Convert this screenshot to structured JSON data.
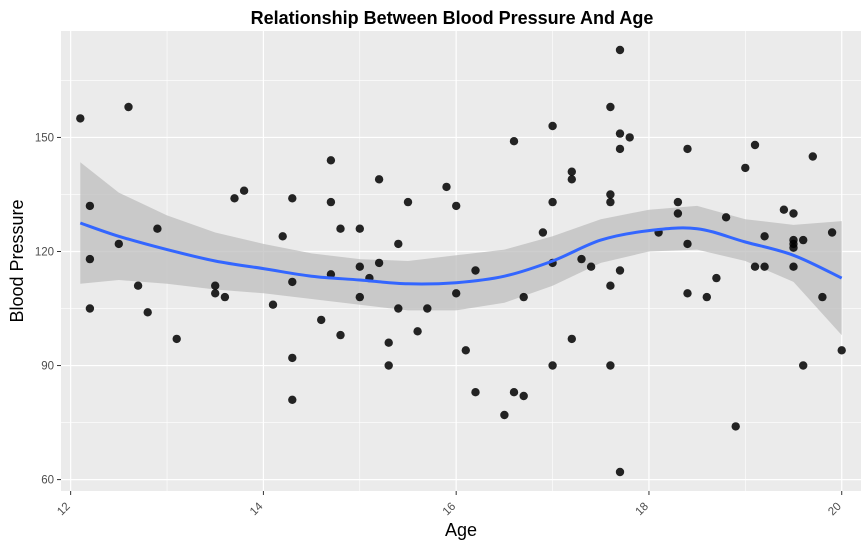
{
  "chart_data": {
    "type": "scatter",
    "title": "Relationship Between Blood Pressure And Age",
    "xlabel": "Age",
    "ylabel": "Blood Pressure",
    "xlim": [
      11.9,
      20.2
    ],
    "ylim": [
      57,
      178
    ],
    "x_ticks": [
      12,
      14,
      16,
      18,
      20
    ],
    "y_ticks": [
      60,
      90,
      120,
      150
    ],
    "grid": true,
    "legend": "none",
    "colors": {
      "panel": "#EBEBEB",
      "grid": "#FFFFFF",
      "points": "#000000",
      "smooth": "#3366FF",
      "ribbon": "#BEBEBE"
    },
    "points": [
      [
        12.1,
        155
      ],
      [
        12.2,
        132
      ],
      [
        12.2,
        118
      ],
      [
        12.2,
        105
      ],
      [
        12.5,
        122
      ],
      [
        12.6,
        158
      ],
      [
        12.7,
        111
      ],
      [
        12.8,
        104
      ],
      [
        12.9,
        126
      ],
      [
        13.1,
        97
      ],
      [
        13.5,
        111
      ],
      [
        13.5,
        109
      ],
      [
        13.6,
        108
      ],
      [
        13.7,
        134
      ],
      [
        13.8,
        136
      ],
      [
        14.1,
        106
      ],
      [
        14.2,
        124
      ],
      [
        14.3,
        134
      ],
      [
        14.3,
        112
      ],
      [
        14.3,
        92
      ],
      [
        14.3,
        81
      ],
      [
        14.6,
        102
      ],
      [
        14.7,
        144
      ],
      [
        14.7,
        133
      ],
      [
        14.7,
        114
      ],
      [
        14.8,
        126
      ],
      [
        14.8,
        98
      ],
      [
        15.0,
        126
      ],
      [
        15.0,
        116
      ],
      [
        15.0,
        108
      ],
      [
        15.1,
        113
      ],
      [
        15.2,
        139
      ],
      [
        15.2,
        117
      ],
      [
        15.3,
        96
      ],
      [
        15.3,
        90
      ],
      [
        15.4,
        122
      ],
      [
        15.4,
        105
      ],
      [
        15.5,
        133
      ],
      [
        15.6,
        99
      ],
      [
        15.7,
        105
      ],
      [
        15.9,
        137
      ],
      [
        16.0,
        132
      ],
      [
        16.0,
        109
      ],
      [
        16.1,
        94
      ],
      [
        16.2,
        115
      ],
      [
        16.2,
        83
      ],
      [
        16.5,
        77
      ],
      [
        16.6,
        149
      ],
      [
        16.6,
        83
      ],
      [
        16.7,
        108
      ],
      [
        16.7,
        82
      ],
      [
        16.9,
        125
      ],
      [
        17.0,
        153
      ],
      [
        17.0,
        133
      ],
      [
        17.0,
        117
      ],
      [
        17.0,
        90
      ],
      [
        17.2,
        141
      ],
      [
        17.2,
        139
      ],
      [
        17.2,
        97
      ],
      [
        17.3,
        118
      ],
      [
        17.4,
        116
      ],
      [
        17.6,
        158
      ],
      [
        17.6,
        135
      ],
      [
        17.6,
        133
      ],
      [
        17.6,
        111
      ],
      [
        17.6,
        90
      ],
      [
        17.7,
        173
      ],
      [
        17.7,
        151
      ],
      [
        17.7,
        147
      ],
      [
        17.7,
        115
      ],
      [
        17.7,
        62
      ],
      [
        17.8,
        150
      ],
      [
        18.1,
        125
      ],
      [
        18.3,
        133
      ],
      [
        18.3,
        130
      ],
      [
        18.4,
        147
      ],
      [
        18.4,
        122
      ],
      [
        18.4,
        109
      ],
      [
        18.6,
        108
      ],
      [
        18.7,
        113
      ],
      [
        18.8,
        129
      ],
      [
        18.9,
        74
      ],
      [
        19.0,
        142
      ],
      [
        19.1,
        148
      ],
      [
        19.1,
        116
      ],
      [
        19.2,
        124
      ],
      [
        19.2,
        116
      ],
      [
        19.4,
        131
      ],
      [
        19.5,
        130
      ],
      [
        19.5,
        123
      ],
      [
        19.5,
        122
      ],
      [
        19.5,
        121
      ],
      [
        19.5,
        116
      ],
      [
        19.6,
        123
      ],
      [
        19.6,
        90
      ],
      [
        19.7,
        145
      ],
      [
        19.8,
        108
      ],
      [
        19.9,
        125
      ],
      [
        20.0,
        94
      ]
    ],
    "smooth_x": [
      12.1,
      12.5,
      13.0,
      13.5,
      14.0,
      14.5,
      15.0,
      15.5,
      16.0,
      16.5,
      17.0,
      17.5,
      18.0,
      18.5,
      19.0,
      19.5,
      20.0
    ],
    "smooth_y": [
      127.5,
      124,
      120.5,
      117.5,
      115.5,
      113.5,
      112.5,
      111.5,
      111.8,
      113.5,
      117.5,
      123,
      125.5,
      126,
      122.5,
      119,
      113
    ],
    "smooth_lo": [
      111.5,
      112.5,
      111.5,
      110,
      109,
      107.5,
      106,
      104.5,
      104.5,
      106.5,
      111,
      117,
      120,
      120.5,
      117.5,
      112,
      98
    ],
    "smooth_hi": [
      143.5,
      135.5,
      129.5,
      125,
      122,
      119.5,
      118,
      117.5,
      119,
      120.5,
      124,
      128.5,
      131,
      132,
      128.5,
      127,
      128
    ]
  }
}
